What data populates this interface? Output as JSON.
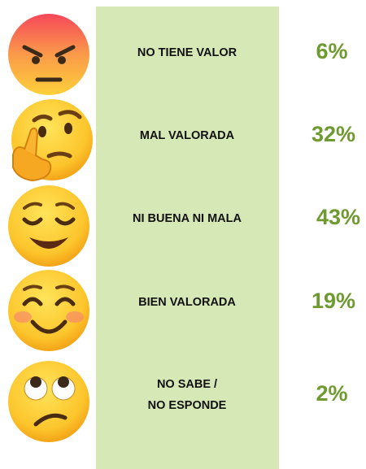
{
  "rows": [
    {
      "label": [
        "NO TIENE VALOR"
      ],
      "percent": "6%"
    },
    {
      "label": [
        "MAL VALORADA"
      ],
      "percent": "32%"
    },
    {
      "label": [
        "NI BUENA NI MALA"
      ],
      "percent": "43%"
    },
    {
      "label": [
        "BIEN VALORADA"
      ],
      "percent": "19%"
    },
    {
      "label": [
        "NO SABE /",
        "NO ESPONDE"
      ],
      "percent": "2%"
    }
  ]
}
